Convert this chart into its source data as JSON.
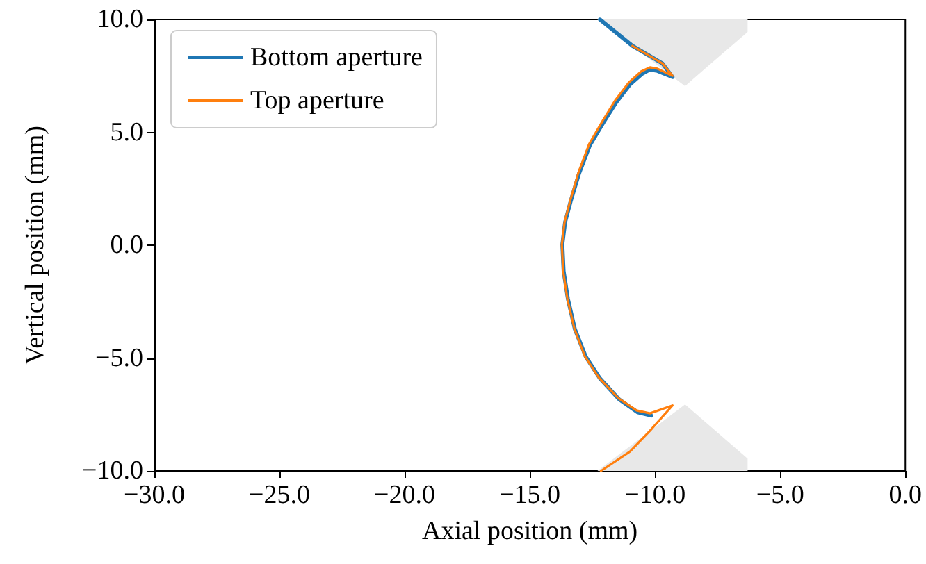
{
  "chart_data": {
    "type": "line",
    "xlabel": "Axial position (mm)",
    "ylabel": "Vertical position (mm)",
    "xlim": [
      -30,
      0
    ],
    "ylim": [
      -10,
      10
    ],
    "xticks": [
      {
        "value": -30,
        "label": "−30.0"
      },
      {
        "value": -25,
        "label": "−25.0"
      },
      {
        "value": -20,
        "label": "−20.0"
      },
      {
        "value": -15,
        "label": "−15.0"
      },
      {
        "value": -10,
        "label": "−10.0"
      },
      {
        "value": -5,
        "label": "−5.0"
      },
      {
        "value": 0,
        "label": "0.0"
      }
    ],
    "yticks": [
      {
        "value": -10,
        "label": "−10.0"
      },
      {
        "value": -5,
        "label": "−5.0"
      },
      {
        "value": 0,
        "label": "0.0"
      },
      {
        "value": 5,
        "label": "5.0"
      },
      {
        "value": 10,
        "label": "10.0"
      }
    ],
    "grid": false,
    "legend": "top left",
    "marker": "none",
    "line_style": "solid",
    "series": [
      {
        "type": "area",
        "color": "#e8e8e8",
        "x": [
          -12.3,
          -8.8,
          -6.3,
          -6.3
        ],
        "values": [
          10,
          7.05,
          9.45,
          10
        ]
      },
      {
        "type": "area",
        "color": "#e8e8e8",
        "x": [
          -12.3,
          -8.8,
          -6.3,
          -6.3
        ],
        "values": [
          -10,
          -7.05,
          -9.45,
          -10
        ]
      },
      {
        "name": "Bottom aperture",
        "color": "#1f77b4",
        "x": [
          -12.2,
          -10.9,
          -9.7,
          -9.3,
          -9.9,
          -10.2,
          -10.5,
          -11.0,
          -11.55,
          -12.04,
          -12.6,
          -13.04,
          -13.37,
          -13.59,
          -13.7,
          -13.65,
          -13.48,
          -13.2,
          -12.76,
          -12.2,
          -11.42,
          -10.7,
          -10.15
        ],
        "values": [
          10,
          8.83,
          8.05,
          7.45,
          7.72,
          7.78,
          7.6,
          7.12,
          6.32,
          5.47,
          4.43,
          3.15,
          1.94,
          1.02,
          0.03,
          -1.14,
          -2.37,
          -3.72,
          -4.95,
          -5.9,
          -6.84,
          -7.4,
          -7.55
        ]
      },
      {
        "name": "Top aperture",
        "color": "#ff7f0e",
        "x": [
          -10.9,
          -9.7,
          -9.3,
          -9.9,
          -10.2,
          -10.55,
          -11.05,
          -11.6,
          -12.08,
          -12.63,
          -13.07,
          -13.39,
          -13.61,
          -13.72,
          -13.67,
          -13.5,
          -13.22,
          -12.8,
          -12.25,
          -11.46,
          -10.74,
          -10.2,
          -9.3,
          -10.2,
          -11.0,
          -12.16
        ],
        "values": [
          8.83,
          8.05,
          7.5,
          7.82,
          7.88,
          7.7,
          7.2,
          6.4,
          5.53,
          4.48,
          3.18,
          1.96,
          1.03,
          0.03,
          -1.14,
          -2.37,
          -3.7,
          -4.93,
          -5.86,
          -6.78,
          -7.32,
          -7.45,
          -7.1,
          -8.22,
          -9.14,
          -10
        ]
      }
    ]
  }
}
